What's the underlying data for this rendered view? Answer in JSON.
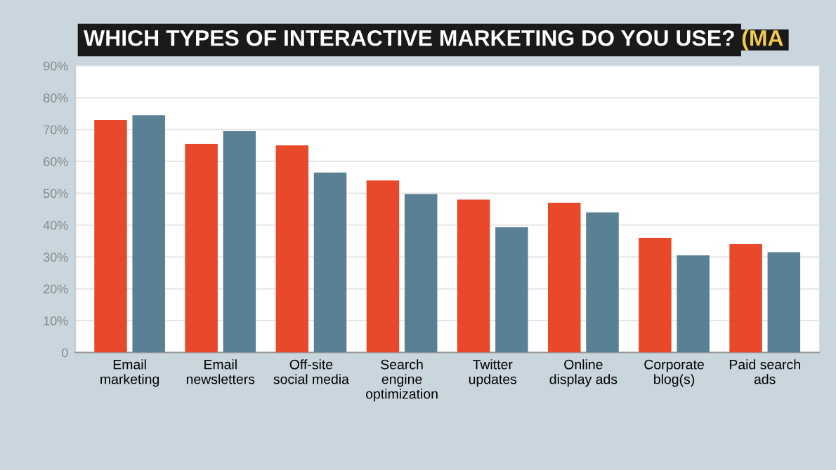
{
  "chart_data": {
    "type": "bar",
    "title": "WHICH TYPES OF INTERACTIVE MARKETING DO YOU USE?",
    "subtitle": "(MA",
    "categories": [
      "Email\nmarketing",
      "Email\nnewsletters",
      "Off-site\nsocial media",
      "Search\nengine\noptimization",
      "Twitter\nupdates",
      "Online\ndisplay ads",
      "Corporate\nblog(s)",
      "Paid search\nads"
    ],
    "series": [
      {
        "color": "#e8492a",
        "values": [
          73,
          65.5,
          65,
          54,
          48,
          47,
          36,
          34
        ]
      },
      {
        "color": "#5a8096",
        "values": [
          74.5,
          69.5,
          56.5,
          49.7,
          39.3,
          44,
          30.5,
          31.5
        ]
      }
    ],
    "ylim": [
      0,
      90
    ],
    "yticks": [
      {
        "value": 0,
        "label": "0"
      },
      {
        "value": 10,
        "label": "10%"
      },
      {
        "value": 20,
        "label": "20%"
      },
      {
        "value": 30,
        "label": "30%"
      },
      {
        "value": 40,
        "label": "40%"
      },
      {
        "value": 50,
        "label": "50%"
      },
      {
        "value": 60,
        "label": "60%"
      },
      {
        "value": 70,
        "label": "70%"
      },
      {
        "value": 80,
        "label": "80%"
      },
      {
        "value": 90,
        "label": "90%"
      }
    ],
    "grid": "y",
    "legend": false
  }
}
